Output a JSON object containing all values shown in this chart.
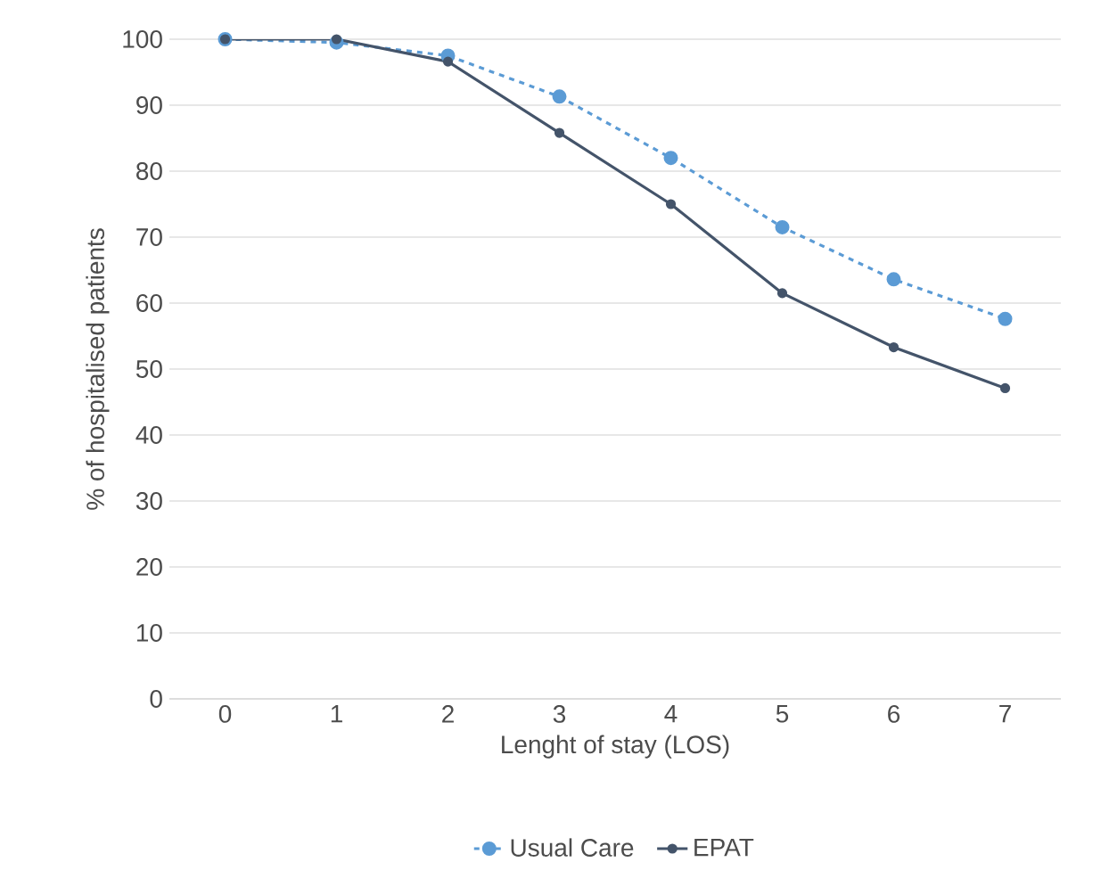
{
  "chart_data": {
    "type": "line",
    "xlabel": "Lenght of stay (LOS)",
    "ylabel": "% of hospitalised patients",
    "categories": [
      "0",
      "1",
      "2",
      "3",
      "4",
      "5",
      "6",
      "7"
    ],
    "series": [
      {
        "name": "Usual Care",
        "color": "#5b9bd5",
        "line_style": "dashed",
        "values": [
          100,
          99.5,
          97.5,
          91.3,
          82,
          71.5,
          63.6,
          57.6
        ]
      },
      {
        "name": "EPAT",
        "color": "#44546a",
        "line_style": "solid",
        "values": [
          100,
          100,
          96.6,
          85.8,
          75,
          61.5,
          53.3,
          47.1
        ]
      }
    ],
    "ylim": [
      0,
      100
    ],
    "yticks": [
      0,
      10,
      20,
      30,
      40,
      50,
      60,
      70,
      80,
      90,
      100
    ],
    "grid": "y",
    "legend": "bottom",
    "marker": "circle"
  }
}
